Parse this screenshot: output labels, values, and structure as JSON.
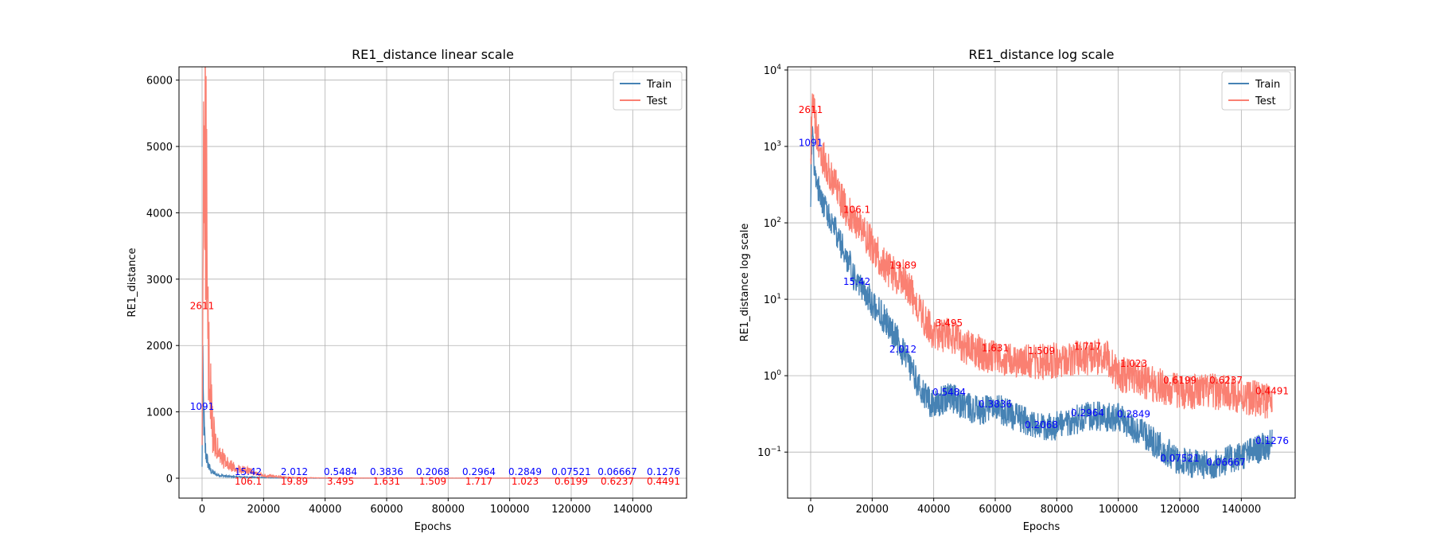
{
  "chart_data": [
    {
      "type": "line",
      "title": "RE1_distance linear scale",
      "xlabel": "Epochs",
      "ylabel": "RE1_distance",
      "yscale": "linear",
      "xlim": [
        -7500,
        157500
      ],
      "ylim": [
        -300,
        6200
      ],
      "xticks": [
        0,
        20000,
        40000,
        60000,
        80000,
        100000,
        120000,
        140000
      ],
      "xtick_labels": [
        "0",
        "20000",
        "40000",
        "60000",
        "80000",
        "100000",
        "120000",
        "140000"
      ],
      "yticks": [
        0,
        1000,
        2000,
        3000,
        4000,
        5000,
        6000
      ],
      "ytick_labels": [
        "0",
        "1000",
        "2000",
        "3000",
        "4000",
        "5000",
        "6000"
      ],
      "grid": true,
      "legend": "upper right",
      "series": [
        {
          "name": "Train",
          "color": "#4682b4",
          "x": [
            0,
            100,
            300,
            500,
            700,
            1000,
            1500,
            2000,
            2500,
            3000,
            4000,
            5000,
            6000,
            8000,
            10000,
            12500,
            15000,
            20000,
            25000,
            30000,
            40000,
            50000,
            60000,
            70000,
            80000,
            90000,
            100000,
            110000,
            120000,
            130000,
            140000,
            150000
          ],
          "values": [
            150,
            1091,
            1300,
            950,
            700,
            450,
            300,
            200,
            140,
            100,
            70,
            50,
            40,
            30,
            22,
            18,
            15.42,
            10,
            3.5,
            2.012,
            0.5484,
            0.3836,
            0.2068,
            0.2964,
            0.2849,
            0.2,
            0.15,
            0.1,
            0.07521,
            0.06667,
            0.1,
            0.1276
          ]
        },
        {
          "name": "Test",
          "color": "#fa8072",
          "x": [
            0,
            200,
            500,
            800,
            1000,
            1300,
            1600,
            2000,
            2500,
            3000,
            3500,
            4000,
            5000,
            6000,
            7000,
            8000,
            10000,
            12000,
            15000,
            20000,
            25000,
            30000,
            40000,
            50000,
            60000,
            70000,
            80000,
            90000,
            96000,
            100000,
            110000,
            120000,
            130000,
            140000,
            150000
          ],
          "values": [
            400,
            2611,
            4600,
            5900,
            5000,
            4200,
            3100,
            1800,
            1200,
            900,
            650,
            500,
            380,
            300,
            250,
            200,
            150,
            120,
            106.1,
            40,
            19.89,
            8,
            3.495,
            2.5,
            1.631,
            1.509,
            1.717,
            1.3,
            1.2,
            1.023,
            0.8,
            0.6199,
            0.6237,
            0.5,
            0.4491
          ]
        }
      ],
      "annotations": {
        "train": [
          {
            "x": 0,
            "y": 1091,
            "text": "1091"
          },
          {
            "x": 15000,
            "y": 15.42,
            "text": "15.42"
          },
          {
            "x": 30000,
            "y": 2.012,
            "text": "2.012"
          },
          {
            "x": 45000,
            "y": 0.5484,
            "text": "0.5484"
          },
          {
            "x": 60000,
            "y": 0.3836,
            "text": "0.3836"
          },
          {
            "x": 75000,
            "y": 0.2068,
            "text": "0.2068"
          },
          {
            "x": 90000,
            "y": 0.2964,
            "text": "0.2964"
          },
          {
            "x": 105000,
            "y": 0.2849,
            "text": "0.2849"
          },
          {
            "x": 120000,
            "y": 0.07521,
            "text": "0.07521"
          },
          {
            "x": 135000,
            "y": 0.06667,
            "text": "0.06667"
          },
          {
            "x": 150000,
            "y": 0.1276,
            "text": "0.1276"
          }
        ],
        "test": [
          {
            "x": 0,
            "y": 2611,
            "text": "2611"
          },
          {
            "x": 15000,
            "y": 106.1,
            "text": "106.1"
          },
          {
            "x": 30000,
            "y": 19.89,
            "text": "19.89"
          },
          {
            "x": 45000,
            "y": 3.495,
            "text": "3.495"
          },
          {
            "x": 60000,
            "y": 1.631,
            "text": "1.631"
          },
          {
            "x": 75000,
            "y": 1.509,
            "text": "1.509"
          },
          {
            "x": 90000,
            "y": 1.717,
            "text": "1.717"
          },
          {
            "x": 105000,
            "y": 1.023,
            "text": "1.023"
          },
          {
            "x": 120000,
            "y": 0.6199,
            "text": "0.6199"
          },
          {
            "x": 135000,
            "y": 0.6237,
            "text": "0.6237"
          },
          {
            "x": 150000,
            "y": 0.4491,
            "text": "0.4491"
          }
        ]
      }
    },
    {
      "type": "line",
      "title": "RE1_distance log scale",
      "xlabel": "Epochs",
      "ylabel": "RE1_distance log scale",
      "yscale": "log",
      "xlim": [
        -7500,
        157500
      ],
      "ylim": [
        0.025,
        11000
      ],
      "xticks": [
        0,
        20000,
        40000,
        60000,
        80000,
        100000,
        120000,
        140000
      ],
      "xtick_labels": [
        "0",
        "20000",
        "40000",
        "60000",
        "80000",
        "100000",
        "120000",
        "140000"
      ],
      "yticks": [
        0.1,
        1,
        10,
        100,
        1000,
        10000
      ],
      "ytick_exponents": [
        "−1",
        "0",
        "1",
        "2",
        "3",
        "4"
      ],
      "ytick_base": "10",
      "grid": true,
      "legend": "upper right",
      "series": [
        {
          "name": "Train",
          "color": "#4682b4",
          "x": [
            0,
            300,
            600,
            1000,
            2000,
            3000,
            5000,
            8000,
            10000,
            12500,
            15000,
            18000,
            20000,
            25000,
            28000,
            30000,
            33000,
            36000,
            40000,
            45000,
            50000,
            55000,
            60000,
            70000,
            75000,
            80000,
            90000,
            100000,
            110000,
            120000,
            130000,
            140000,
            150000
          ],
          "values": [
            150,
            1091,
            1500,
            700,
            350,
            250,
            150,
            80,
            50,
            30,
            15.42,
            12,
            9,
            5,
            3,
            2.012,
            1.2,
            0.6,
            0.4,
            0.5484,
            0.4,
            0.35,
            0.3836,
            0.25,
            0.2068,
            0.22,
            0.2964,
            0.2849,
            0.15,
            0.07521,
            0.06667,
            0.09,
            0.1276
          ]
        },
        {
          "name": "Test",
          "color": "#fa8072",
          "x": [
            0,
            300,
            600,
            1000,
            2000,
            3000,
            5000,
            8000,
            10000,
            12500,
            15000,
            18000,
            20000,
            25000,
            28000,
            30000,
            35000,
            40000,
            45000,
            50000,
            55000,
            60000,
            70000,
            75000,
            80000,
            90000,
            95000,
            96000,
            97000,
            100000,
            105000,
            110000,
            120000,
            130000,
            135000,
            140000,
            150000
          ],
          "values": [
            600,
            2611,
            4000,
            3500,
            1500,
            900,
            600,
            300,
            200,
            130,
            106.1,
            70,
            50,
            25,
            20,
            19.89,
            8,
            3.5,
            3.495,
            2.4,
            2,
            1.631,
            1.6,
            1.509,
            1.6,
            1.717,
            1.8,
            2,
            1.5,
            1.023,
            1,
            0.8,
            0.6199,
            0.6237,
            0.6,
            0.55,
            0.4491
          ]
        }
      ],
      "annotations": {
        "train": [
          {
            "x": 0,
            "y": 1091,
            "text": "1091"
          },
          {
            "x": 15000,
            "y": 15.42,
            "text": "15.42"
          },
          {
            "x": 30000,
            "y": 2.012,
            "text": "2.012"
          },
          {
            "x": 45000,
            "y": 0.5484,
            "text": "0.5484"
          },
          {
            "x": 60000,
            "y": 0.3836,
            "text": "0.3836"
          },
          {
            "x": 75000,
            "y": 0.2068,
            "text": "0.2068"
          },
          {
            "x": 90000,
            "y": 0.2964,
            "text": "0.2964"
          },
          {
            "x": 105000,
            "y": 0.2849,
            "text": "0.2849"
          },
          {
            "x": 120000,
            "y": 0.07521,
            "text": "0.07521"
          },
          {
            "x": 135000,
            "y": 0.06667,
            "text": "0.06667"
          },
          {
            "x": 150000,
            "y": 0.1276,
            "text": "0.1276"
          }
        ],
        "test": [
          {
            "x": 0,
            "y": 2611,
            "text": "2611"
          },
          {
            "x": 15000,
            "y": 106.1,
            "text": "106.1"
          },
          {
            "x": 30000,
            "y": 19.89,
            "text": "19.89"
          },
          {
            "x": 45000,
            "y": 3.495,
            "text": "3.495"
          },
          {
            "x": 60000,
            "y": 1.631,
            "text": "1.631"
          },
          {
            "x": 75000,
            "y": 1.509,
            "text": "1.509"
          },
          {
            "x": 90000,
            "y": 1.717,
            "text": "1.717"
          },
          {
            "x": 105000,
            "y": 1.023,
            "text": "1.023"
          },
          {
            "x": 120000,
            "y": 0.6199,
            "text": "0.6199"
          },
          {
            "x": 135000,
            "y": 0.6237,
            "text": "0.6237"
          },
          {
            "x": 150000,
            "y": 0.4491,
            "text": "0.4491"
          }
        ]
      }
    }
  ]
}
